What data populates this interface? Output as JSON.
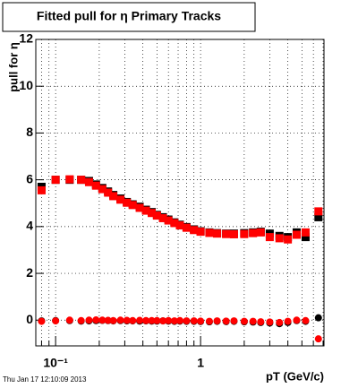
{
  "chart_data": {
    "type": "scatter",
    "title": "Fitted pull for  η  Primary Tracks",
    "y_label": "pull for η",
    "x_label": "pT (GeV/c)",
    "timestamp": "Thu Jan 17 12:10:09 2013",
    "log_x": true,
    "grid": true,
    "xlim": [
      0.073,
      7.1
    ],
    "ylim": [
      -1.1,
      12
    ],
    "xticks": [
      {
        "value": 0.1,
        "label": "10⁻¹"
      },
      1
    ],
    "xminor_ticks": [
      0.08,
      0.09,
      0.2,
      0.3,
      0.4,
      0.5,
      0.6,
      0.7,
      0.8,
      0.9,
      2,
      3,
      4,
      5,
      6,
      7
    ],
    "yticks": [
      0,
      2,
      4,
      6,
      8,
      10,
      12
    ],
    "x": [
      0.08,
      0.1,
      0.125,
      0.15,
      0.17,
      0.19,
      0.21,
      0.23,
      0.25,
      0.28,
      0.31,
      0.34,
      0.38,
      0.42,
      0.46,
      0.5,
      0.55,
      0.6,
      0.66,
      0.72,
      0.8,
      0.9,
      1.0,
      1.15,
      1.3,
      1.5,
      1.7,
      2.0,
      2.3,
      2.6,
      3.0,
      3.5,
      4.0,
      4.6,
      5.3,
      6.5
    ],
    "series": [
      {
        "color": "#000000",
        "marker": "square",
        "values": [
          5.7,
          6.0,
          6.0,
          6.0,
          5.95,
          5.8,
          5.65,
          5.5,
          5.35,
          5.2,
          5.05,
          4.95,
          4.85,
          4.72,
          4.62,
          4.5,
          4.4,
          4.3,
          4.18,
          4.08,
          3.98,
          3.88,
          3.8,
          3.75,
          3.72,
          3.7,
          3.7,
          3.72,
          3.75,
          3.78,
          3.7,
          3.6,
          3.55,
          3.75,
          3.55,
          4.4
        ]
      },
      {
        "color": "#ff0000",
        "marker": "square",
        "values": [
          5.55,
          6.0,
          6.02,
          6.0,
          5.9,
          5.75,
          5.6,
          5.45,
          5.3,
          5.15,
          5.02,
          4.92,
          4.8,
          4.68,
          4.58,
          4.47,
          4.36,
          4.26,
          4.15,
          4.05,
          3.95,
          3.85,
          3.78,
          3.73,
          3.7,
          3.68,
          3.67,
          3.68,
          3.72,
          3.75,
          3.55,
          3.5,
          3.45,
          3.65,
          3.75,
          4.65
        ]
      },
      {
        "color": "#000000",
        "marker": "circle",
        "values": [
          -0.03,
          -0.02,
          -0.02,
          -0.04,
          -0.03,
          -0.02,
          -0.01,
          -0.02,
          -0.03,
          -0.02,
          -0.03,
          -0.03,
          -0.04,
          -0.03,
          -0.04,
          -0.04,
          -0.03,
          -0.04,
          -0.05,
          -0.04,
          -0.05,
          -0.05,
          -0.06,
          -0.07,
          -0.05,
          -0.06,
          -0.05,
          -0.07,
          -0.08,
          -0.1,
          -0.12,
          -0.15,
          -0.1,
          -0.02,
          -0.05,
          0.1
        ]
      },
      {
        "color": "#ff0000",
        "marker": "circle",
        "values": [
          -0.05,
          -0.03,
          0.0,
          -0.02,
          0.0,
          0.01,
          0.0,
          -0.01,
          -0.02,
          0.0,
          -0.01,
          -0.02,
          -0.01,
          -0.02,
          -0.02,
          -0.02,
          -0.03,
          -0.02,
          -0.03,
          -0.02,
          -0.03,
          -0.03,
          -0.04,
          -0.05,
          -0.03,
          -0.04,
          -0.03,
          -0.05,
          -0.05,
          -0.07,
          -0.08,
          -0.1,
          -0.05,
          0.0,
          -0.02,
          -0.8
        ]
      }
    ]
  }
}
